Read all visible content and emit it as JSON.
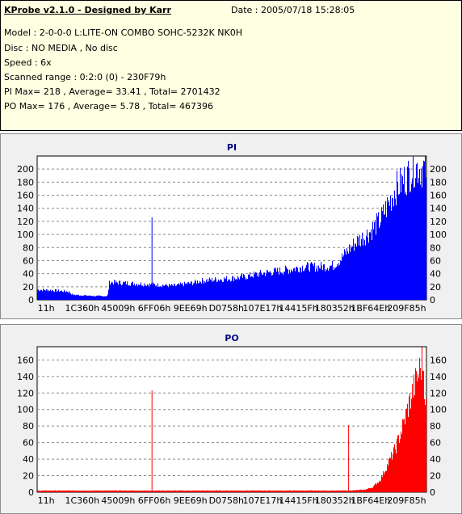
{
  "app": {
    "title": "KProbe v2.1.0 - Designed by Karr",
    "date": "Date : 2005/07/18 15:28:05",
    "lines": [
      "Model : 2-0-0-0 L:LITE-ON COMBO SOHC-5232K NK0H",
      "Disc : NO MEDIA , No disc",
      "Speed : 6x",
      "Scanned range : 0:2:0 (0) - 230F79h",
      "PI Max= 218 , Average= 33.41 , Total= 2701432",
      "PO Max= 176 , Average= 5.78 , Total= 467396"
    ]
  },
  "chart_data": [
    {
      "type": "area",
      "title": "PI",
      "color": "#0000ff",
      "x_tick_labels": [
        "11h",
        "1C360h",
        "45009h",
        "6FF06h",
        "9EE69h",
        "D0758h",
        "107E17h",
        "14415Fh",
        "180352h",
        "1BF64Eh",
        "209F85h"
      ],
      "ylim": [
        0,
        220
      ],
      "y_ticks": [
        0,
        20,
        40,
        60,
        80,
        100,
        120,
        140,
        160,
        180,
        200
      ],
      "grid": true,
      "series_profile": [
        [
          0.0,
          16
        ],
        [
          0.04,
          15
        ],
        [
          0.08,
          13
        ],
        [
          0.09,
          8
        ],
        [
          0.12,
          7
        ],
        [
          0.15,
          6
        ],
        [
          0.18,
          6
        ],
        [
          0.185,
          28
        ],
        [
          0.24,
          26
        ],
        [
          0.3,
          24
        ],
        [
          0.35,
          22
        ],
        [
          0.38,
          25
        ],
        [
          0.4,
          27
        ],
        [
          0.42,
          30
        ],
        [
          0.46,
          32
        ],
        [
          0.5,
          34
        ],
        [
          0.53,
          36
        ],
        [
          0.56,
          40
        ],
        [
          0.6,
          44
        ],
        [
          0.65,
          48
        ],
        [
          0.68,
          52
        ],
        [
          0.72,
          52
        ],
        [
          0.76,
          54
        ],
        [
          0.78,
          65
        ],
        [
          0.8,
          80
        ],
        [
          0.82,
          92
        ],
        [
          0.85,
          105
        ],
        [
          0.88,
          125
        ],
        [
          0.9,
          150
        ],
        [
          0.92,
          175
        ],
        [
          0.95,
          195
        ],
        [
          0.97,
          210
        ],
        [
          1.0,
          205
        ]
      ],
      "spikes": [
        {
          "x_frac": 0.295,
          "value": 126
        }
      ]
    },
    {
      "type": "area",
      "title": "PO",
      "color": "#ff0000",
      "x_tick_labels": [
        "11h",
        "1C360h",
        "45009h",
        "6FF06h",
        "9EE69h",
        "D0758h",
        "107E17h",
        "14415Fh",
        "180352h",
        "1BF64Eh",
        "209F85h"
      ],
      "ylim": [
        0,
        176
      ],
      "y_ticks": [
        0,
        20,
        40,
        60,
        80,
        100,
        120,
        140,
        160
      ],
      "grid": true,
      "series_profile": [
        [
          0.0,
          2
        ],
        [
          0.8,
          2
        ],
        [
          0.84,
          3
        ],
        [
          0.86,
          6
        ],
        [
          0.88,
          15
        ],
        [
          0.9,
          35
        ],
        [
          0.92,
          55
        ],
        [
          0.94,
          85
        ],
        [
          0.96,
          120
        ],
        [
          0.98,
          150
        ],
        [
          0.99,
          165
        ],
        [
          1.0,
          90
        ]
      ],
      "spikes": [
        {
          "x_frac": 0.295,
          "value": 123
        },
        {
          "x_frac": 0.8,
          "value": 81
        }
      ]
    }
  ]
}
